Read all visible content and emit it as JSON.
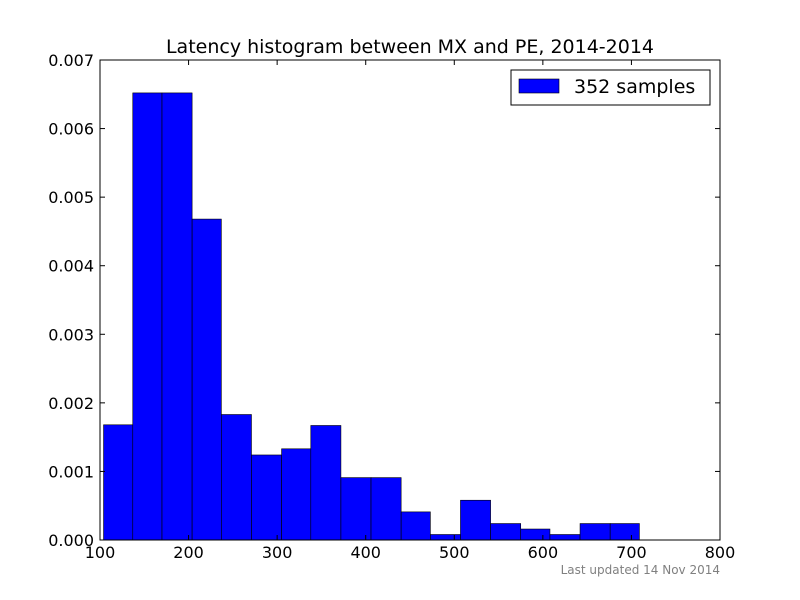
{
  "chart_data": {
    "type": "bar",
    "title": "Latency histogram between MX and PE, 2014-2014",
    "xlabel": "",
    "ylabel": "",
    "xlim": [
      100,
      800
    ],
    "ylim": [
      0,
      0.007
    ],
    "x_ticks": [
      100,
      200,
      300,
      400,
      500,
      600,
      700,
      800
    ],
    "y_ticks": [
      "0.000",
      "0.001",
      "0.002",
      "0.003",
      "0.004",
      "0.005",
      "0.006",
      "0.007"
    ],
    "grid": false,
    "legend_position": "top-right",
    "bar_color": "#0000ff",
    "series": [
      {
        "name": "352 samples",
        "bins": [
          {
            "x0": 104,
            "x1": 137,
            "value": 0.00168
          },
          {
            "x0": 137,
            "x1": 170,
            "value": 0.00652
          },
          {
            "x0": 170,
            "x1": 204,
            "value": 0.00652
          },
          {
            "x0": 204,
            "x1": 237,
            "value": 0.00468
          },
          {
            "x0": 237,
            "x1": 271,
            "value": 0.00183
          },
          {
            "x0": 271,
            "x1": 305,
            "value": 0.00124
          },
          {
            "x0": 305,
            "x1": 338,
            "value": 0.00133
          },
          {
            "x0": 338,
            "x1": 372,
            "value": 0.00167
          },
          {
            "x0": 372,
            "x1": 406,
            "value": 0.00091
          },
          {
            "x0": 406,
            "x1": 440,
            "value": 0.00091
          },
          {
            "x0": 440,
            "x1": 473,
            "value": 0.00041
          },
          {
            "x0": 473,
            "x1": 507,
            "value": 8e-05
          },
          {
            "x0": 507,
            "x1": 541,
            "value": 0.00058
          },
          {
            "x0": 541,
            "x1": 575,
            "value": 0.00024
          },
          {
            "x0": 575,
            "x1": 608,
            "value": 0.00016
          },
          {
            "x0": 608,
            "x1": 642,
            "value": 8e-05
          },
          {
            "x0": 642,
            "x1": 676,
            "value": 0.00024
          },
          {
            "x0": 676,
            "x1": 709,
            "value": 0.00024
          }
        ]
      }
    ],
    "footnote": "Last updated 14 Nov 2014"
  }
}
